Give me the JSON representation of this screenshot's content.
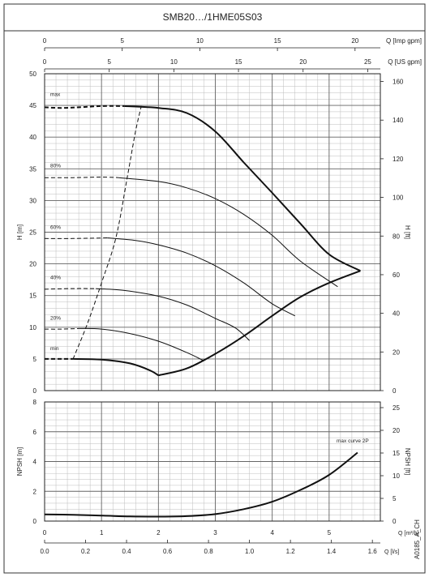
{
  "title": "SMB20…/1HME05S03",
  "figure_code": "A0185_A_CH",
  "chart_data": [
    {
      "type": "line",
      "name_panel": "head",
      "top_axes": [
        {
          "label": "Q [Imp gpm]",
          "ticks": [
            0,
            5,
            10,
            15,
            20
          ]
        },
        {
          "label": "Q [US gpm]",
          "ticks": [
            0,
            5,
            10,
            15,
            20,
            25
          ]
        }
      ],
      "ylabel": "H [m]",
      "ylabel_right": "H [ft]",
      "xlim": [
        0,
        5.9
      ],
      "ylim": [
        0,
        50
      ],
      "yticks": [
        0,
        5,
        10,
        15,
        20,
        25,
        30,
        35,
        40,
        45,
        50
      ],
      "yticks_right": [
        0,
        20,
        40,
        60,
        80,
        100,
        120,
        140,
        160
      ],
      "series": [
        {
          "name": "max",
          "style": "bold",
          "points": [
            [
              1.4,
              44.9
            ],
            [
              2.0,
              44.6
            ],
            [
              2.5,
              43.8
            ],
            [
              3.0,
              40.9
            ],
            [
              3.5,
              36.0
            ],
            [
              4.0,
              31.2
            ],
            [
              4.5,
              26.3
            ],
            [
              5.0,
              21.5
            ],
            [
              5.55,
              18.9
            ]
          ]
        },
        {
          "name": "80%",
          "style": "thin",
          "points": [
            [
              1.3,
              33.6
            ],
            [
              2.0,
              33.0
            ],
            [
              2.5,
              32.0
            ],
            [
              3.0,
              30.3
            ],
            [
              3.5,
              27.8
            ],
            [
              4.0,
              24.5
            ],
            [
              4.5,
              20.4
            ],
            [
              5.15,
              16.4
            ]
          ]
        },
        {
          "name": "60%",
          "style": "thin",
          "points": [
            [
              1.1,
              24.1
            ],
            [
              1.6,
              23.7
            ],
            [
              2.0,
              23.0
            ],
            [
              2.5,
              21.7
            ],
            [
              3.0,
              19.7
            ],
            [
              3.5,
              17.0
            ],
            [
              4.0,
              13.7
            ],
            [
              4.4,
              11.8
            ]
          ]
        },
        {
          "name": "40%",
          "style": "thin",
          "points": [
            [
              0.9,
              16.1
            ],
            [
              1.4,
              15.8
            ],
            [
              2.0,
              14.9
            ],
            [
              2.5,
              13.5
            ],
            [
              3.0,
              11.4
            ],
            [
              3.35,
              9.9
            ],
            [
              3.6,
              7.9
            ]
          ]
        },
        {
          "name": "20%",
          "style": "thin",
          "points": [
            [
              0.6,
              9.8
            ],
            [
              1.0,
              9.7
            ],
            [
              1.5,
              9.0
            ],
            [
              2.0,
              7.8
            ],
            [
              2.5,
              6.0
            ],
            [
              2.8,
              4.7
            ]
          ]
        },
        {
          "name": "min",
          "style": "bold",
          "points": [
            [
              0.5,
              5.0
            ],
            [
              1.0,
              4.9
            ],
            [
              1.5,
              4.3
            ],
            [
              1.85,
              3.2
            ],
            [
              2.0,
              2.4
            ]
          ]
        },
        {
          "name": "max-dashed",
          "style": "bold-dashed",
          "points": [
            [
              0.0,
              44.7
            ],
            [
              0.3,
              44.6
            ],
            [
              0.6,
              44.7
            ],
            [
              1.0,
              44.9
            ],
            [
              1.4,
              44.9
            ]
          ]
        },
        {
          "name": "80%-dashed",
          "style": "dashed",
          "points": [
            [
              0.0,
              33.6
            ],
            [
              0.5,
              33.6
            ],
            [
              1.0,
              33.7
            ],
            [
              1.3,
              33.6
            ]
          ]
        },
        {
          "name": "60%-dashed",
          "style": "dashed",
          "points": [
            [
              0.0,
              24.0
            ],
            [
              0.5,
              24.0
            ],
            [
              1.1,
              24.1
            ]
          ]
        },
        {
          "name": "40%-dashed",
          "style": "dashed",
          "points": [
            [
              0.0,
              16.0
            ],
            [
              0.5,
              16.1
            ],
            [
              0.9,
              16.1
            ]
          ]
        },
        {
          "name": "20%-dashed",
          "style": "dashed",
          "points": [
            [
              0.0,
              9.7
            ],
            [
              0.3,
              9.7
            ],
            [
              0.6,
              9.8
            ]
          ]
        },
        {
          "name": "min-dashed",
          "style": "bold-dashed",
          "points": [
            [
              0.0,
              5.0
            ],
            [
              0.5,
              5.0
            ]
          ]
        },
        {
          "name": "limit-dashed",
          "style": "dashed",
          "points": [
            [
              0.5,
              5.0
            ],
            [
              0.75,
              10.5
            ],
            [
              1.0,
              17.0
            ],
            [
              1.25,
              24.0
            ],
            [
              1.45,
              33.5
            ],
            [
              1.6,
              41.0
            ],
            [
              1.7,
              44.9
            ]
          ]
        },
        {
          "name": "system-curve",
          "style": "bold",
          "points": [
            [
              2.0,
              2.4
            ],
            [
              2.5,
              3.5
            ],
            [
              3.0,
              5.8
            ],
            [
              3.5,
              8.6
            ],
            [
              4.0,
              11.8
            ],
            [
              4.5,
              14.8
            ],
            [
              5.0,
              17.0
            ],
            [
              5.55,
              18.9
            ]
          ]
        }
      ],
      "curve_labels": [
        {
          "text": "max",
          "x": 0.1,
          "y": 46.5
        },
        {
          "text": "80%",
          "x": 0.1,
          "y": 35.2
        },
        {
          "text": "60%",
          "x": 0.1,
          "y": 25.5
        },
        {
          "text": "40%",
          "x": 0.1,
          "y": 17.6
        },
        {
          "text": "20%",
          "x": 0.1,
          "y": 11.2
        },
        {
          "text": "min",
          "x": 0.1,
          "y": 6.4
        }
      ]
    },
    {
      "type": "line",
      "name_panel": "npsh",
      "ylabel": "NPSH [m]",
      "ylabel_right": "NPSH [ft]",
      "xlim": [
        0,
        5.9
      ],
      "ylim": [
        0,
        8
      ],
      "yticks": [
        0,
        2,
        4,
        6,
        8
      ],
      "yticks_right": [
        0,
        5,
        10,
        15,
        20,
        25
      ],
      "bottom_axes": [
        {
          "label": "Q [m³/h]",
          "ticks": [
            0,
            1,
            2,
            3,
            4,
            5
          ]
        },
        {
          "label": "Q [l/s]",
          "ticks": [
            "0.0",
            "0.2",
            "0.4",
            "0.6",
            "0.8",
            "1.0",
            "1.2",
            "1.4",
            "1.6"
          ]
        }
      ],
      "annotation": "max curve 2P",
      "series": [
        {
          "name": "max curve 2P",
          "points": [
            [
              0.0,
              0.45
            ],
            [
              0.5,
              0.42
            ],
            [
              1.0,
              0.37
            ],
            [
              1.5,
              0.31
            ],
            [
              2.0,
              0.3
            ],
            [
              2.5,
              0.33
            ],
            [
              3.0,
              0.47
            ],
            [
              3.5,
              0.8
            ],
            [
              4.0,
              1.3
            ],
            [
              4.5,
              2.1
            ],
            [
              5.0,
              3.1
            ],
            [
              5.5,
              4.6
            ]
          ]
        }
      ]
    }
  ]
}
